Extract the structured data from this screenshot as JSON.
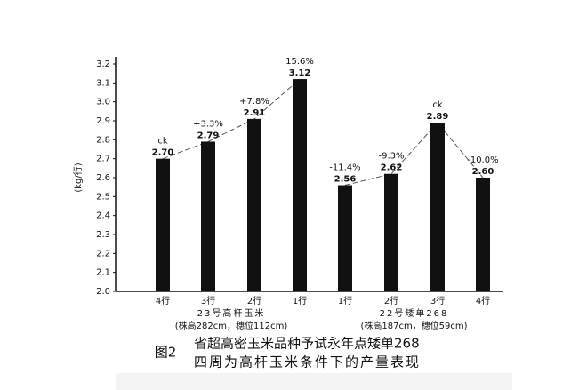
{
  "chart_data": {
    "type": "bar",
    "y_label": "(kg/行)",
    "ylim": [
      2.0,
      3.2
    ],
    "yticks": [
      {
        "value": 2,
        "label": "2.0"
      },
      2.1,
      2.2,
      2.3,
      2.4,
      2.5,
      2.6,
      2.7,
      2.8,
      2.9,
      {
        "value": 3,
        "label": "3.0"
      },
      3.1,
      3.2
    ],
    "color": "#111111",
    "line_color": "#555555",
    "groups": [
      {
        "label": "23号高杆玉米",
        "note": "(株高282cm，穗位112cm)",
        "categories": [
          "4行",
          "3行",
          "2行",
          "1行"
        ],
        "values": [
          2.7,
          2.79,
          2.91,
          3.12
        ],
        "value_labels": [
          "2.70",
          "2.79",
          "2.91",
          "3.12"
        ],
        "annotations": [
          "ck",
          "+3.3%",
          "+7.8%",
          "15.6%"
        ]
      },
      {
        "label": "22号矮单268",
        "note": "(株高187cm，穗位59cm)",
        "categories": [
          "1行",
          "2行",
          "3行",
          "4行"
        ],
        "values": [
          2.56,
          2.62,
          2.89,
          2.6
        ],
        "value_labels": [
          "2.56",
          "2.62",
          "2.89",
          "2.60"
        ],
        "annotations": [
          "-11.4%",
          "-9.3%",
          "ck",
          "-10.0%"
        ]
      }
    ],
    "caption_label": "图2",
    "caption_lines": [
      "省超高密玉米品种予试永年点矮单268",
      "四周为高杆玉米条件下的产量表现"
    ]
  }
}
